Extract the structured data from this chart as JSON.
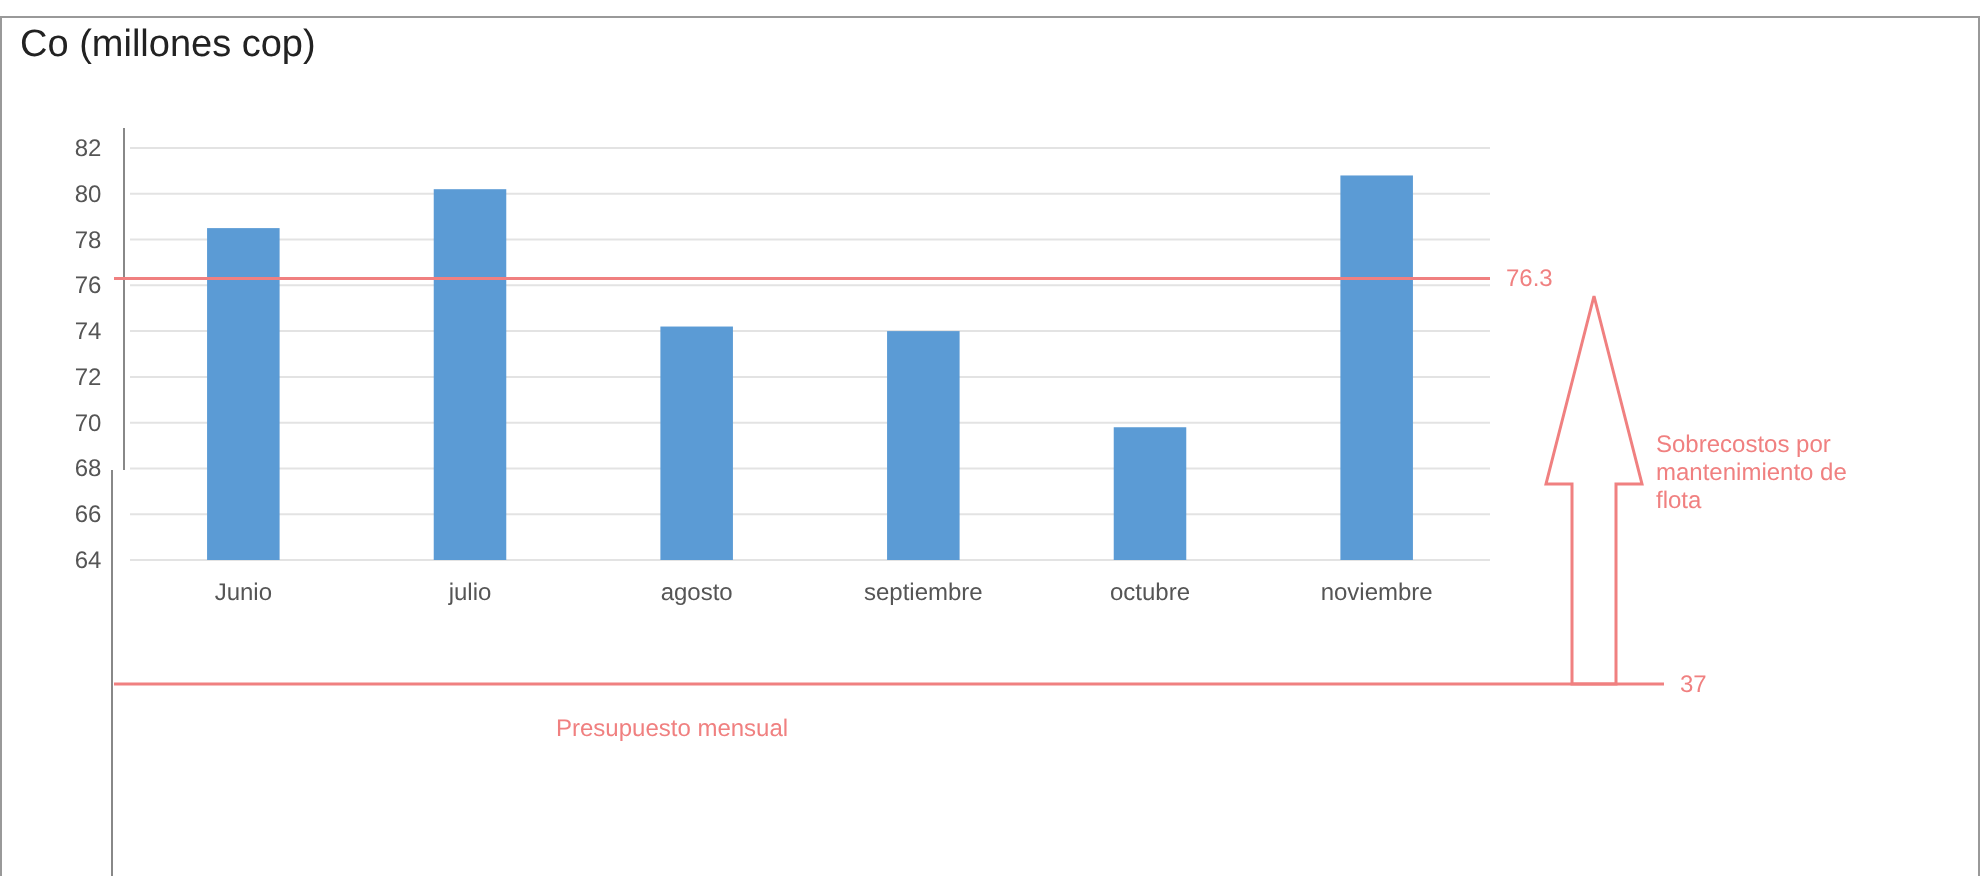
{
  "chart_data": {
    "type": "bar",
    "title": "Co (millones cop)",
    "categories": [
      "Junio",
      "julio",
      "agosto",
      "septiembre",
      "octubre",
      "noviembre"
    ],
    "values": [
      78.5,
      80.2,
      74.2,
      74.0,
      69.8,
      80.8
    ],
    "color": "#5b9bd5",
    "ylim": [
      64,
      82
    ],
    "yticks": [
      64,
      66,
      68,
      70,
      72,
      74,
      76,
      78,
      80,
      82
    ],
    "grid": "y",
    "ref_lines": [
      {
        "axis": "y",
        "value": 76.3,
        "label": "76.3",
        "color": "#f08080"
      }
    ],
    "annotations": [
      "Sobrecostos por mantenimiento de flota",
      "37",
      "Presupuesto mensual"
    ]
  }
}
